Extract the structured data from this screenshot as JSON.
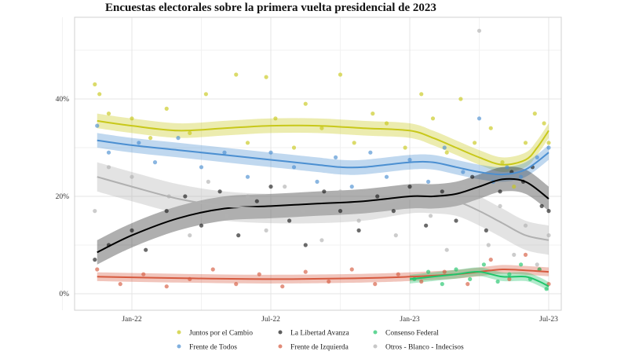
{
  "chart_data": {
    "type": "scatter",
    "title": "Encuestas electorales sobre la primera vuelta presidencial de 2023",
    "xlabel": "",
    "ylabel": "",
    "x_unit": "months since Jan-22",
    "xlim": [
      -2.5,
      18.5
    ],
    "ylim": [
      -3,
      57
    ],
    "x_ticks": [
      {
        "value": 0,
        "label": "Jan-22"
      },
      {
        "value": 6,
        "label": "Jul-22"
      },
      {
        "value": 12,
        "label": "Jan-23"
      },
      {
        "value": 18,
        "label": "Jul-23"
      }
    ],
    "y_ticks": [
      {
        "value": 0,
        "label": "0%"
      },
      {
        "value": 20,
        "label": "20%"
      },
      {
        "value": 40,
        "label": "40%"
      }
    ],
    "grid": true,
    "legend_position": "bottom",
    "series": [
      {
        "name": "Juntos por el Cambio",
        "color": "#c8c81a",
        "band": 1.5,
        "trend": [
          [
            -1.5,
            35.5
          ],
          [
            0,
            34.5
          ],
          [
            2,
            33.5
          ],
          [
            4,
            34
          ],
          [
            6,
            34.5
          ],
          [
            8,
            34.5
          ],
          [
            10,
            34
          ],
          [
            12,
            33.5
          ],
          [
            13,
            32
          ],
          [
            14,
            30
          ],
          [
            15,
            28
          ],
          [
            16,
            26.5
          ],
          [
            17,
            27.5
          ],
          [
            17.5,
            30
          ],
          [
            18,
            33.5
          ]
        ],
        "points": [
          [
            -1.6,
            43
          ],
          [
            -1.4,
            41
          ],
          [
            -1,
            37
          ],
          [
            0,
            36
          ],
          [
            0.8,
            32
          ],
          [
            1.5,
            38
          ],
          [
            2.5,
            33
          ],
          [
            3.2,
            41
          ],
          [
            4.5,
            45
          ],
          [
            5,
            31
          ],
          [
            5.8,
            44.5
          ],
          [
            6.2,
            36
          ],
          [
            7,
            30
          ],
          [
            7.5,
            39
          ],
          [
            8.2,
            34
          ],
          [
            9,
            45
          ],
          [
            9.6,
            31
          ],
          [
            10.4,
            37
          ],
          [
            11,
            35
          ],
          [
            11.8,
            30
          ],
          [
            12.5,
            41
          ],
          [
            13,
            36
          ],
          [
            13.6,
            29
          ],
          [
            14.2,
            40
          ],
          [
            14.8,
            31
          ],
          [
            15.5,
            34
          ],
          [
            16,
            27
          ],
          [
            16.5,
            22
          ],
          [
            17,
            31
          ],
          [
            17.4,
            37
          ],
          [
            17.8,
            35
          ],
          [
            18,
            31
          ]
        ]
      },
      {
        "name": "Frente de Todos",
        "color": "#4b8fd1",
        "band": 1.5,
        "trend": [
          [
            -1.5,
            31.5
          ],
          [
            0,
            30.5
          ],
          [
            2,
            29.5
          ],
          [
            4,
            28.5
          ],
          [
            6,
            27.5
          ],
          [
            8,
            26.5
          ],
          [
            9,
            26
          ],
          [
            10,
            26
          ],
          [
            12,
            27
          ],
          [
            13,
            27
          ],
          [
            14,
            26
          ],
          [
            15,
            25
          ],
          [
            16,
            24.5
          ],
          [
            17,
            25.5
          ],
          [
            18,
            29
          ]
        ],
        "points": [
          [
            -1.5,
            34.5
          ],
          [
            -1,
            29
          ],
          [
            0.3,
            31
          ],
          [
            1,
            27
          ],
          [
            2,
            32
          ],
          [
            3,
            26
          ],
          [
            4,
            29
          ],
          [
            5,
            24
          ],
          [
            6,
            29
          ],
          [
            7,
            26
          ],
          [
            8,
            23
          ],
          [
            8.8,
            28
          ],
          [
            9.5,
            22
          ],
          [
            10.3,
            29
          ],
          [
            11,
            24
          ],
          [
            12,
            27.5
          ],
          [
            12.8,
            23
          ],
          [
            13.5,
            30
          ],
          [
            14.3,
            25
          ],
          [
            15,
            36
          ],
          [
            15.6,
            23
          ],
          [
            16.2,
            26
          ],
          [
            16.8,
            24
          ],
          [
            17.5,
            28
          ],
          [
            18,
            30
          ]
        ]
      },
      {
        "name": "La Libertad Avanza",
        "color": "#1a1a1a",
        "band": 2.5,
        "trend": [
          [
            -1.5,
            8.5
          ],
          [
            0,
            12
          ],
          [
            2,
            15.5
          ],
          [
            4,
            17.5
          ],
          [
            6,
            18
          ],
          [
            8,
            18.5
          ],
          [
            10,
            19
          ],
          [
            12,
            20
          ],
          [
            13,
            20
          ],
          [
            14,
            20.5
          ],
          [
            15,
            22
          ],
          [
            16,
            23.5
          ],
          [
            17,
            23
          ],
          [
            18,
            19.5
          ]
        ],
        "points": [
          [
            -1.6,
            7
          ],
          [
            -1,
            10
          ],
          [
            0,
            13
          ],
          [
            0.6,
            9
          ],
          [
            1.5,
            17
          ],
          [
            2.3,
            20
          ],
          [
            3,
            14
          ],
          [
            3.8,
            21
          ],
          [
            4.6,
            12
          ],
          [
            5.4,
            19
          ],
          [
            6,
            22
          ],
          [
            6.8,
            15
          ],
          [
            7.5,
            10
          ],
          [
            8.3,
            21
          ],
          [
            9,
            17
          ],
          [
            9.8,
            13
          ],
          [
            10.6,
            20
          ],
          [
            11.3,
            17
          ],
          [
            12,
            22
          ],
          [
            12.7,
            14
          ],
          [
            13.4,
            21
          ],
          [
            14,
            15
          ],
          [
            14.7,
            24
          ],
          [
            15.3,
            13
          ],
          [
            15.9,
            21
          ],
          [
            16.4,
            25
          ],
          [
            16.9,
            23
          ],
          [
            17.3,
            26
          ],
          [
            17.7,
            18
          ],
          [
            18,
            17
          ]
        ]
      },
      {
        "name": "Frente de Izquierda",
        "color": "#d65a3f",
        "band": 0.9,
        "trend": [
          [
            -1.5,
            3.5
          ],
          [
            2,
            3.2
          ],
          [
            6,
            3
          ],
          [
            10,
            3.2
          ],
          [
            12,
            3.5
          ],
          [
            14,
            4
          ],
          [
            15,
            4.5
          ],
          [
            16,
            5
          ],
          [
            17,
            4.8
          ],
          [
            18,
            4.5
          ]
        ],
        "points": [
          [
            -1.5,
            5
          ],
          [
            -0.5,
            2
          ],
          [
            0.5,
            4
          ],
          [
            1.5,
            1.5
          ],
          [
            2.5,
            3
          ],
          [
            3.5,
            5
          ],
          [
            4.5,
            2
          ],
          [
            5.5,
            4
          ],
          [
            6.5,
            1.5
          ],
          [
            7.5,
            4.5
          ],
          [
            8.5,
            2.5
          ],
          [
            9.5,
            5
          ],
          [
            10.5,
            2
          ],
          [
            11.5,
            4
          ],
          [
            12.5,
            2.5
          ],
          [
            13.5,
            4.5
          ],
          [
            14.5,
            2
          ],
          [
            15.5,
            7
          ],
          [
            16.3,
            3
          ],
          [
            17,
            8
          ],
          [
            17.6,
            5
          ],
          [
            18,
            2
          ]
        ]
      },
      {
        "name": "Consenso Federal",
        "color": "#1fc46a",
        "band": 0.9,
        "trend": [
          [
            12,
            3
          ],
          [
            13,
            3.5
          ],
          [
            14,
            4
          ],
          [
            15,
            4.5
          ],
          [
            16,
            3.5
          ],
          [
            17,
            3.5
          ],
          [
            17.6,
            2.5
          ],
          [
            18,
            1.5
          ]
        ],
        "points": [
          [
            12.2,
            3
          ],
          [
            12.8,
            4.5
          ],
          [
            13.4,
            2
          ],
          [
            14,
            5
          ],
          [
            14.6,
            3
          ],
          [
            15.2,
            6
          ],
          [
            15.8,
            2.5
          ],
          [
            16.3,
            4
          ],
          [
            16.8,
            6
          ],
          [
            17.2,
            3
          ],
          [
            17.6,
            5
          ],
          [
            17.9,
            1
          ]
        ]
      },
      {
        "name": "Otros - Blanco - Indecisos",
        "color": "#b0b0b0",
        "band": 3,
        "trend": [
          [
            -1.5,
            24
          ],
          [
            0,
            22
          ],
          [
            2,
            19.5
          ],
          [
            4,
            18
          ],
          [
            6,
            17.5
          ],
          [
            8,
            17.5
          ],
          [
            10,
            18
          ],
          [
            12,
            19.5
          ],
          [
            13,
            19.5
          ],
          [
            14,
            19
          ],
          [
            15,
            17
          ],
          [
            16,
            14.5
          ],
          [
            17,
            12
          ],
          [
            18,
            11
          ]
        ],
        "points": [
          [
            -1.6,
            17
          ],
          [
            -1,
            26
          ],
          [
            0,
            24
          ],
          [
            0.8,
            15
          ],
          [
            1.6,
            20
          ],
          [
            2.5,
            12
          ],
          [
            3.3,
            23
          ],
          [
            4.1,
            16
          ],
          [
            5,
            20
          ],
          [
            5.8,
            13
          ],
          [
            6.6,
            22
          ],
          [
            7.4,
            17
          ],
          [
            8.2,
            11
          ],
          [
            9,
            21
          ],
          [
            9.8,
            15
          ],
          [
            10.6,
            19
          ],
          [
            11.4,
            12
          ],
          [
            12.2,
            20
          ],
          [
            12.9,
            16
          ],
          [
            13.6,
            9
          ],
          [
            14.3,
            22
          ],
          [
            15,
            54
          ],
          [
            15.4,
            10
          ],
          [
            15.9,
            18
          ],
          [
            16.5,
            8
          ],
          [
            17,
            14
          ],
          [
            17.5,
            6
          ],
          [
            18,
            12
          ]
        ]
      }
    ]
  }
}
